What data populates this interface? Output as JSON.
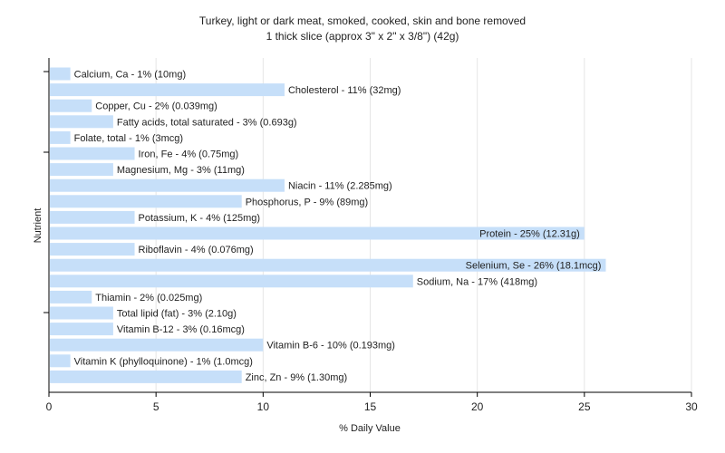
{
  "chart_data": {
    "type": "bar",
    "orientation": "horizontal",
    "title": "Turkey, light or dark meat, smoked, cooked, skin and bone removed",
    "subtitle": "1 thick slice (approx 3\" x 2\" x 3/8\") (42g)",
    "xlabel": "% Daily Value",
    "ylabel": "Nutrient",
    "xlim": [
      0,
      30
    ],
    "xticks": [
      0,
      5,
      10,
      15,
      20,
      25,
      30
    ],
    "grid": true,
    "bar_color": "#c6dff9",
    "categories": [
      "Calcium, Ca",
      "Cholesterol",
      "Copper, Cu",
      "Fatty acids, total saturated",
      "Folate, total",
      "Iron, Fe",
      "Magnesium, Mg",
      "Niacin",
      "Phosphorus, P",
      "Potassium, K",
      "Protein",
      "Riboflavin",
      "Selenium, Se",
      "Sodium, Na",
      "Thiamin",
      "Total lipid (fat)",
      "Vitamin B-12",
      "Vitamin B-6",
      "Vitamin K (phylloquinone)",
      "Zinc, Zn"
    ],
    "values": [
      1,
      11,
      2,
      3,
      1,
      4,
      3,
      11,
      9,
      4,
      25,
      4,
      26,
      17,
      2,
      3,
      3,
      10,
      1,
      9
    ],
    "labels": [
      "Calcium, Ca - 1% (10mg)",
      "Cholesterol - 11% (32mg)",
      "Copper, Cu - 2% (0.039mg)",
      "Fatty acids, total saturated - 3% (0.693g)",
      "Folate, total - 1% (3mcg)",
      "Iron, Fe - 4% (0.75mg)",
      "Magnesium, Mg - 3% (11mg)",
      "Niacin - 11% (2.285mg)",
      "Phosphorus, P - 9% (89mg)",
      "Potassium, K - 4% (125mg)",
      "Protein - 25% (12.31g)",
      "Riboflavin - 4% (0.076mg)",
      "Selenium, Se - 26% (18.1mcg)",
      "Sodium, Na - 17% (418mg)",
      "Thiamin - 2% (0.025mg)",
      "Total lipid (fat) - 3% (2.10g)",
      "Vitamin B-12 - 3% (0.16mcg)",
      "Vitamin B-6 - 10% (0.193mg)",
      "Vitamin K (phylloquinone) - 1% (1.0mcg)",
      "Zinc, Zn - 9% (1.30mg)"
    ]
  }
}
